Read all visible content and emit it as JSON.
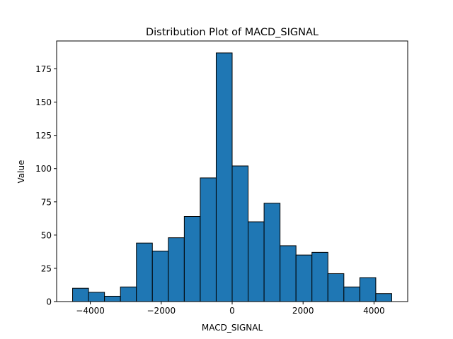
{
  "chart_data": {
    "type": "bar",
    "title": "Distribution Plot of MACD_SIGNAL",
    "xlabel": "MACD_SIGNAL",
    "ylabel": "Value",
    "xlim": [
      -4950,
      4950
    ],
    "ylim": [
      0,
      196
    ],
    "x_ticks": [
      -4000,
      -2000,
      0,
      2000,
      4000
    ],
    "x_tick_labels": [
      "−4000",
      "−2000",
      "0",
      "2000",
      "4000"
    ],
    "y_ticks": [
      0,
      25,
      50,
      75,
      100,
      125,
      150,
      175
    ],
    "y_tick_labels": [
      "0",
      "25",
      "50",
      "75",
      "100",
      "125",
      "150",
      "175"
    ],
    "bin_edges": [
      -4500,
      -4050,
      -3600,
      -3150,
      -2700,
      -2250,
      -1800,
      -1350,
      -900,
      -450,
      0,
      450,
      900,
      1350,
      1800,
      2250,
      2700,
      3150,
      3600,
      4050,
      4500
    ],
    "values": [
      10,
      7,
      4,
      11,
      44,
      38,
      48,
      64,
      93,
      187,
      102,
      60,
      74,
      42,
      35,
      37,
      21,
      11,
      18,
      6
    ],
    "bar_color": "#1f77b4",
    "edge_color": "#000000",
    "grid": false,
    "legend": false
  }
}
